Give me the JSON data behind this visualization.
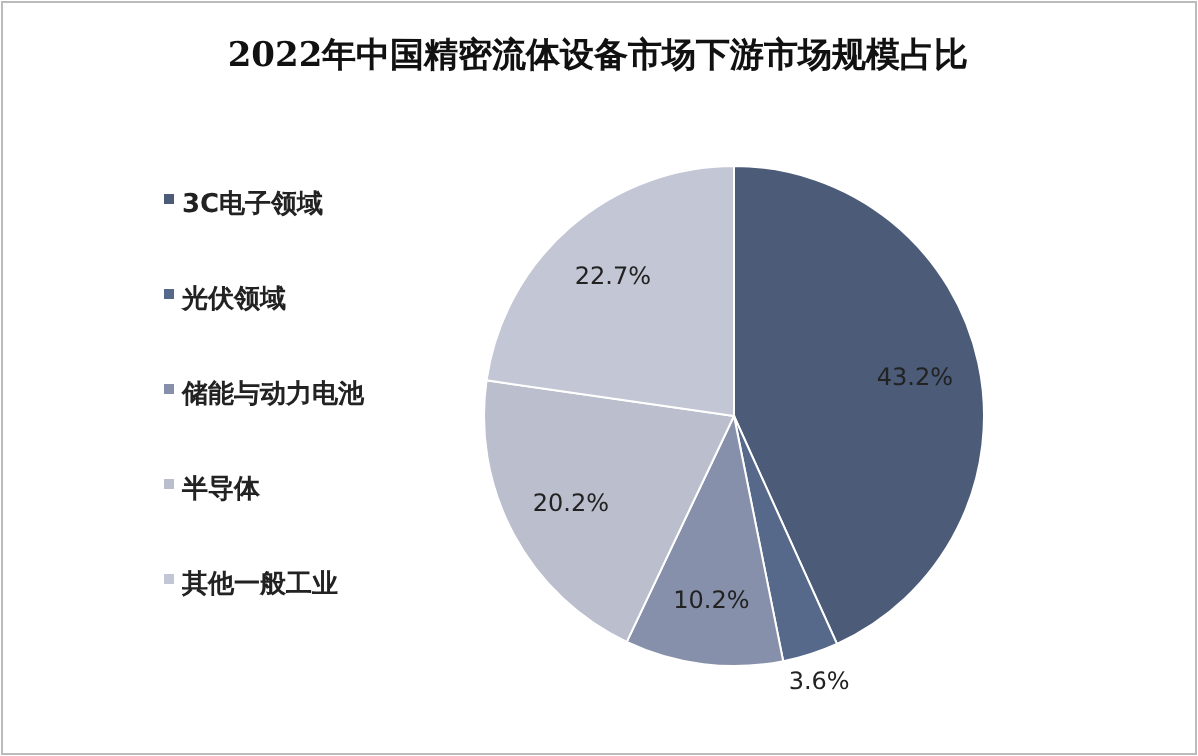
{
  "chart_data": {
    "type": "pie",
    "title": "2022年中国精密流体设备市场下游市场规模占比",
    "categories": [
      "3C电子领域",
      "光伏领域",
      "储能与动力电池",
      "半导体",
      "其他一般工业"
    ],
    "values": [
      43.2,
      3.6,
      10.2,
      20.2,
      22.7
    ],
    "value_labels": [
      "43.2%",
      "3.6%",
      "10.2%",
      "20.2%",
      "22.7%"
    ],
    "colors": [
      "#4b5b78",
      "#56698a",
      "#8690aa",
      "#babecd",
      "#c3c6d4"
    ],
    "legend": "left"
  }
}
